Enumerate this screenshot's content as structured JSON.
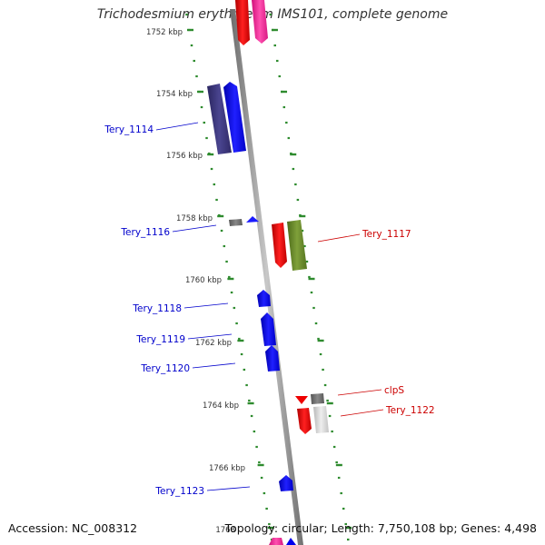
{
  "title": "Trichodesmium erythraeum IMS101, complete genome",
  "footer": {
    "accession": "Accession: NC_008312",
    "summary": "Topology: circular; Length: 7,750,108 bp; Genes: 4,498"
  },
  "colors": {
    "forward_genes": "#0000ff",
    "reverse_genes": "#cc0000",
    "dna_backbone": "#888888",
    "tick_marks": "#2e8b2e"
  },
  "ticks": [
    "1752 kbp",
    "1754 kbp",
    "1756 kbp",
    "1758 kbp",
    "1760 kbp",
    "1762 kbp",
    "1764 kbp",
    "1766 kbp",
    "1768"
  ],
  "forward_gene_labels": [
    "Tery_1114",
    "Tery_1116",
    "Tery_1118",
    "Tery_1119",
    "Tery_1120",
    "Tery_1123"
  ],
  "reverse_gene_labels": [
    "Tery_1117",
    "clpS",
    "Tery_1122"
  ]
}
